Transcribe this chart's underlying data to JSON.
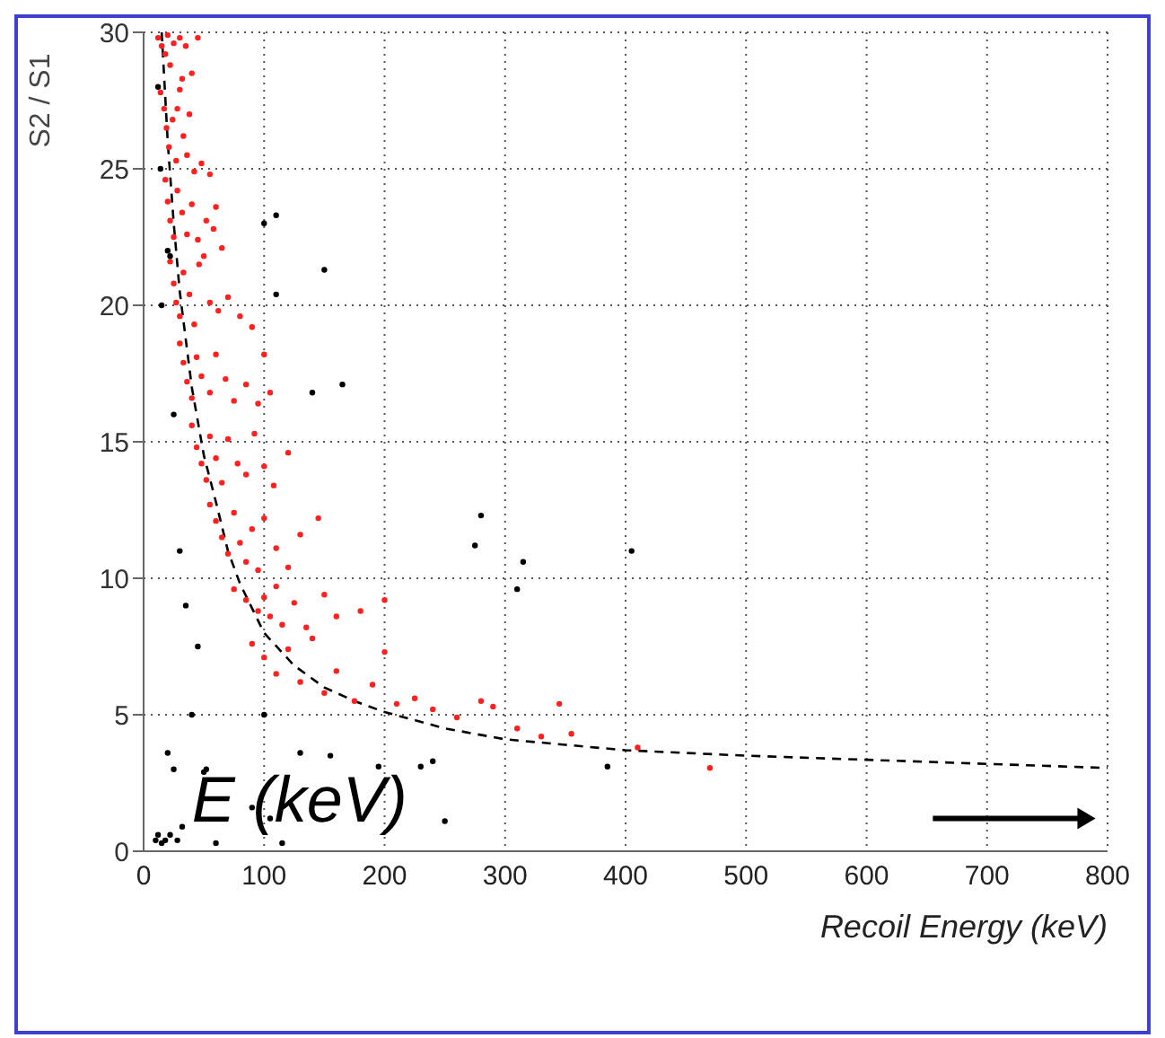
{
  "chart_data": {
    "type": "scatter",
    "xlabel": "Recoil Energy (keV)",
    "ylabel": "S2 / S1",
    "xlim": [
      0,
      800
    ],
    "ylim": [
      0,
      30
    ],
    "xticks": [
      0,
      100,
      200,
      300,
      400,
      500,
      600,
      700,
      800
    ],
    "yticks": [
      0,
      5,
      10,
      15,
      20,
      25,
      30
    ],
    "grid": true,
    "annotations": [
      "E (keV)"
    ],
    "series": [
      {
        "color": "#ff2020",
        "marker": "circle",
        "x": [
          12,
          15,
          18,
          20,
          22,
          25,
          30,
          35,
          32,
          28,
          40,
          45,
          38,
          14,
          17,
          19,
          21,
          24,
          27,
          33,
          36,
          42,
          30,
          48,
          55,
          18,
          20,
          22,
          25,
          28,
          32,
          36,
          40,
          45,
          52,
          58,
          60,
          65,
          50,
          22,
          25,
          27,
          30,
          33,
          38,
          42,
          46,
          55,
          62,
          70,
          80,
          90,
          30,
          33,
          36,
          40,
          44,
          48,
          55,
          60,
          68,
          75,
          85,
          95,
          100,
          105,
          40,
          44,
          48,
          52,
          55,
          60,
          65,
          70,
          78,
          85,
          92,
          100,
          108,
          120,
          55,
          60,
          65,
          70,
          75,
          80,
          85,
          90,
          95,
          100,
          110,
          120,
          130,
          145,
          75,
          85,
          95,
          100,
          105,
          110,
          115,
          125,
          135,
          150,
          160,
          180,
          200,
          90,
          100,
          110,
          120,
          130,
          140,
          150,
          160,
          175,
          190,
          200,
          210,
          225,
          240,
          260,
          280,
          290,
          310,
          330,
          345,
          355,
          410,
          470
        ],
        "values": [
          29.8,
          29.5,
          29.2,
          29.9,
          28.8,
          29.6,
          29.8,
          29.5,
          28.3,
          27.2,
          28.5,
          29.8,
          27,
          27.8,
          27.2,
          26.5,
          25.8,
          26.8,
          25.3,
          26.2,
          25.5,
          24.9,
          27.9,
          25.2,
          24.8,
          24.6,
          23.8,
          23.1,
          22.5,
          24.2,
          23.4,
          22.6,
          23.7,
          22.4,
          23.1,
          22.8,
          23.6,
          22.1,
          21.8,
          21.6,
          20.8,
          20.1,
          19.6,
          21.2,
          20.4,
          19.3,
          21.5,
          20.1,
          19.8,
          20.3,
          19.6,
          19.2,
          18.6,
          17.9,
          17.2,
          16.6,
          18.1,
          17.4,
          16.8,
          18.2,
          17.3,
          16.5,
          17.1,
          16.4,
          18.2,
          16.8,
          15.6,
          14.8,
          14.2,
          13.6,
          15.2,
          14.4,
          13.5,
          15.1,
          14.2,
          13.8,
          15.3,
          14.1,
          13.4,
          14.6,
          12.7,
          12.1,
          11.5,
          10.9,
          12.4,
          11.3,
          10.6,
          11.8,
          10.3,
          12.2,
          11.1,
          10.4,
          11.6,
          12.2,
          9.6,
          9.2,
          8.8,
          9.3,
          8.6,
          9.7,
          8.3,
          9.1,
          8.2,
          9.4,
          8.6,
          8.8,
          9.2,
          7.6,
          7.1,
          6.5,
          7.4,
          6.2,
          7.8,
          5.8,
          6.6,
          5.5,
          6.1,
          7.3,
          5.4,
          5.6,
          5.2,
          4.9,
          5.5,
          5.3,
          4.5,
          4.2,
          5.4,
          4.3,
          3.8,
          3.05
        ]
      },
      {
        "color": "#000000",
        "marker": "circle",
        "x": [
          10,
          12,
          15,
          18,
          20,
          22,
          25,
          28,
          32,
          50,
          52,
          60,
          90,
          100,
          105,
          115,
          130,
          155,
          195,
          230,
          240,
          250,
          385,
          100,
          110,
          150,
          110,
          140,
          165,
          280,
          275,
          315,
          310,
          405,
          20,
          22,
          25,
          30,
          35,
          40,
          45,
          12,
          14,
          15
        ],
        "values": [
          0.4,
          0.6,
          0.3,
          0.4,
          3.6,
          0.6,
          3.0,
          0.4,
          0.9,
          2.9,
          3.0,
          0.3,
          1.6,
          5,
          1.2,
          0.3,
          3.6,
          3.5,
          3.1,
          3.1,
          3.3,
          1.1,
          3.1,
          23,
          23.3,
          21.3,
          20.4,
          16.8,
          17.1,
          12.3,
          11.2,
          10.6,
          9.6,
          11.0,
          22,
          21.8,
          16,
          11,
          9,
          5,
          7.5,
          28,
          25,
          20
        ]
      },
      {
        "type": "line",
        "color": "#000000",
        "line_style": "dashed",
        "x": [
          15,
          20,
          25,
          30,
          40,
          50,
          60,
          70,
          80,
          100,
          125,
          150,
          175,
          200,
          250,
          300,
          350,
          400,
          500,
          600,
          700,
          800
        ],
        "values": [
          30,
          26,
          23,
          20.5,
          17,
          14.5,
          12.8,
          11,
          9.8,
          8,
          6.8,
          6,
          5.5,
          5.1,
          4.5,
          4.1,
          3.9,
          3.7,
          3.5,
          3.35,
          3.2,
          3.05
        ]
      }
    ]
  }
}
